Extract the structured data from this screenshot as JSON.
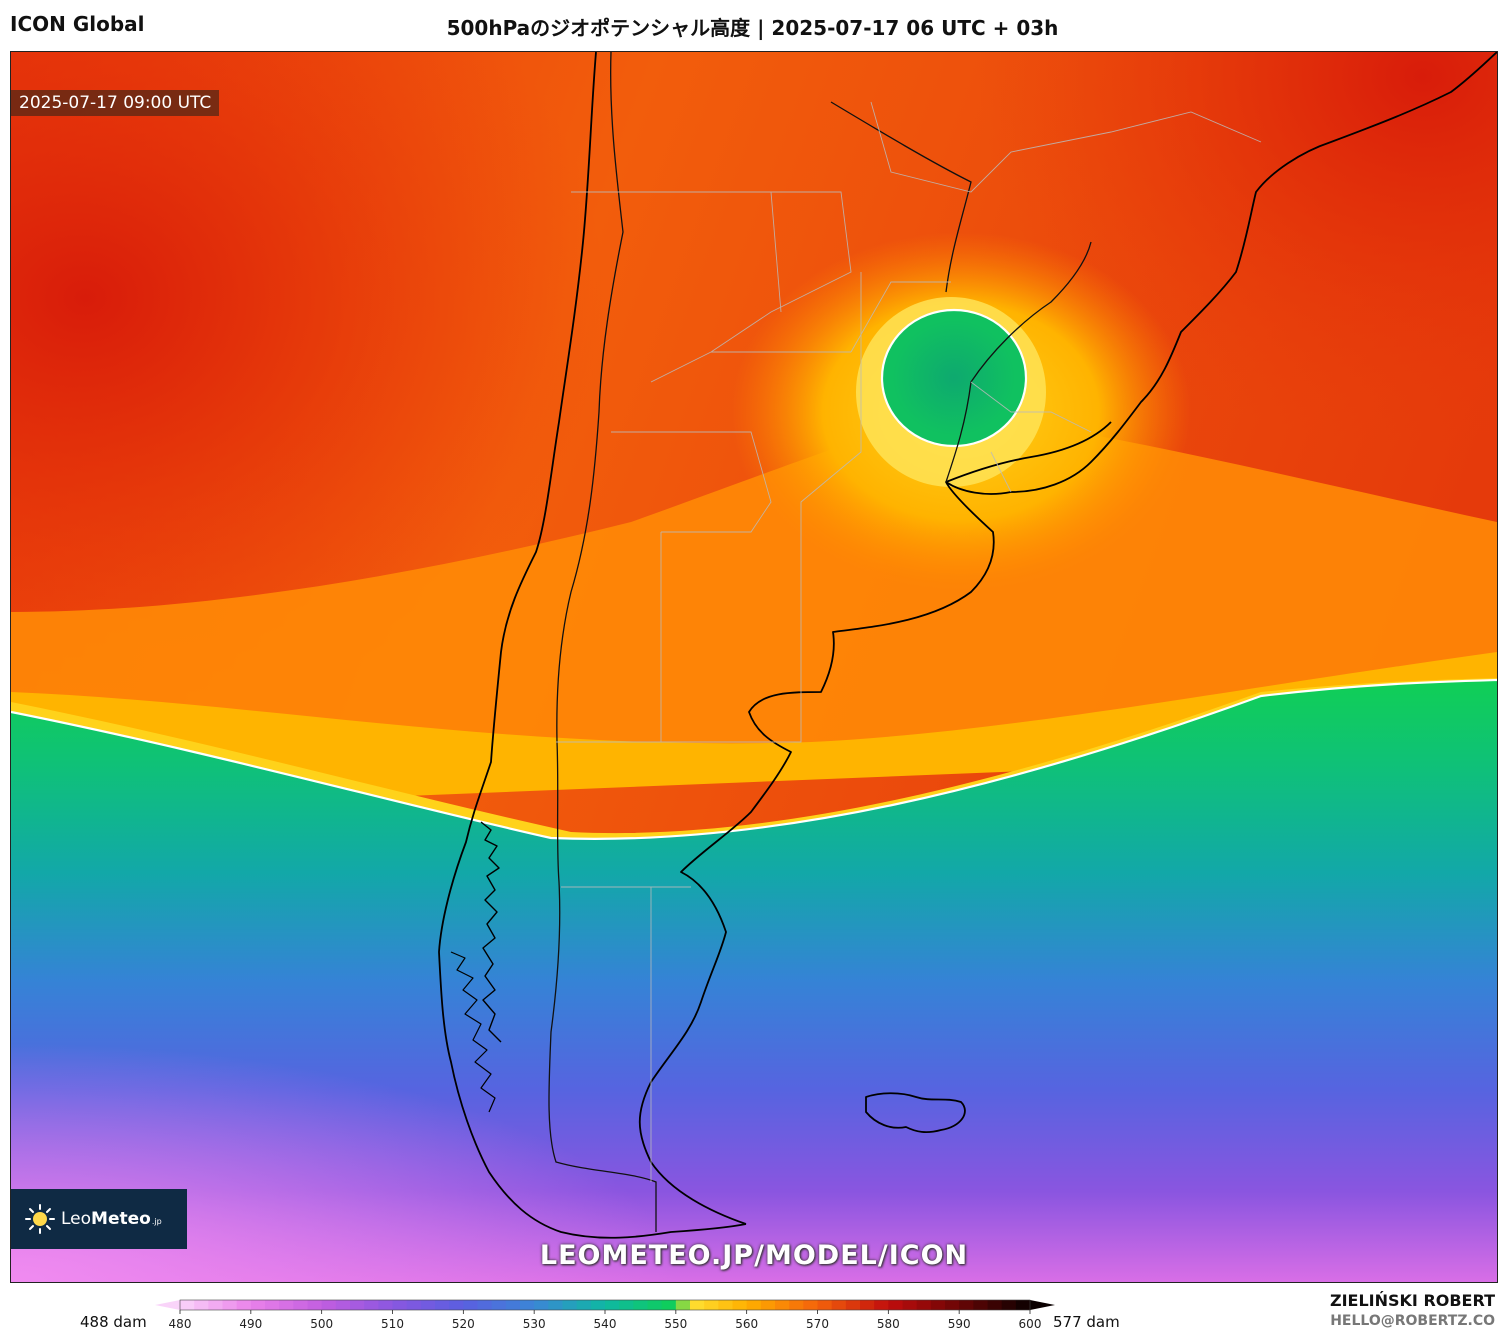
{
  "header": {
    "model": "ICON Global",
    "title": "500hPaのジオポテンシャル高度 | 2025-07-17 06 UTC + 03h"
  },
  "map": {
    "valid_time": "2025-07-17 09:00 UTC",
    "watermark_url": "LEOMETEO.JP/MODEL/ICON",
    "logo": {
      "name": "LeoMeteo",
      "prefix": "Leo",
      "bold": "Meteo",
      "suffix": ".jp",
      "icon": "sun-icon"
    }
  },
  "colorbar": {
    "min_label": "488 dam",
    "max_label": "577 dam",
    "ticks": [
      "480",
      "490",
      "500",
      "510",
      "520",
      "530",
      "540",
      "550",
      "560",
      "570",
      "580",
      "590",
      "600"
    ],
    "range": [
      480,
      600
    ],
    "stops": [
      {
        "value": 480,
        "color": "#f9d4f9"
      },
      {
        "value": 490,
        "color": "#ea82ea"
      },
      {
        "value": 500,
        "color": "#c25ee0"
      },
      {
        "value": 510,
        "color": "#8a57e0"
      },
      {
        "value": 520,
        "color": "#5a5fe0"
      },
      {
        "value": 530,
        "color": "#3b86d6"
      },
      {
        "value": 540,
        "color": "#0fb8a3"
      },
      {
        "value": 550,
        "color": "#0fcf55"
      },
      {
        "value": 552,
        "color": "#ffe133"
      },
      {
        "value": 560,
        "color": "#ffb000"
      },
      {
        "value": 570,
        "color": "#f4620b"
      },
      {
        "value": 580,
        "color": "#c10d0d"
      },
      {
        "value": 590,
        "color": "#6a0505"
      },
      {
        "value": 600,
        "color": "#0a0000"
      }
    ]
  },
  "credits": {
    "author": "ZIELIŃSKI ROBERT",
    "email": "HELLO@ROBERTZ.CO"
  }
}
